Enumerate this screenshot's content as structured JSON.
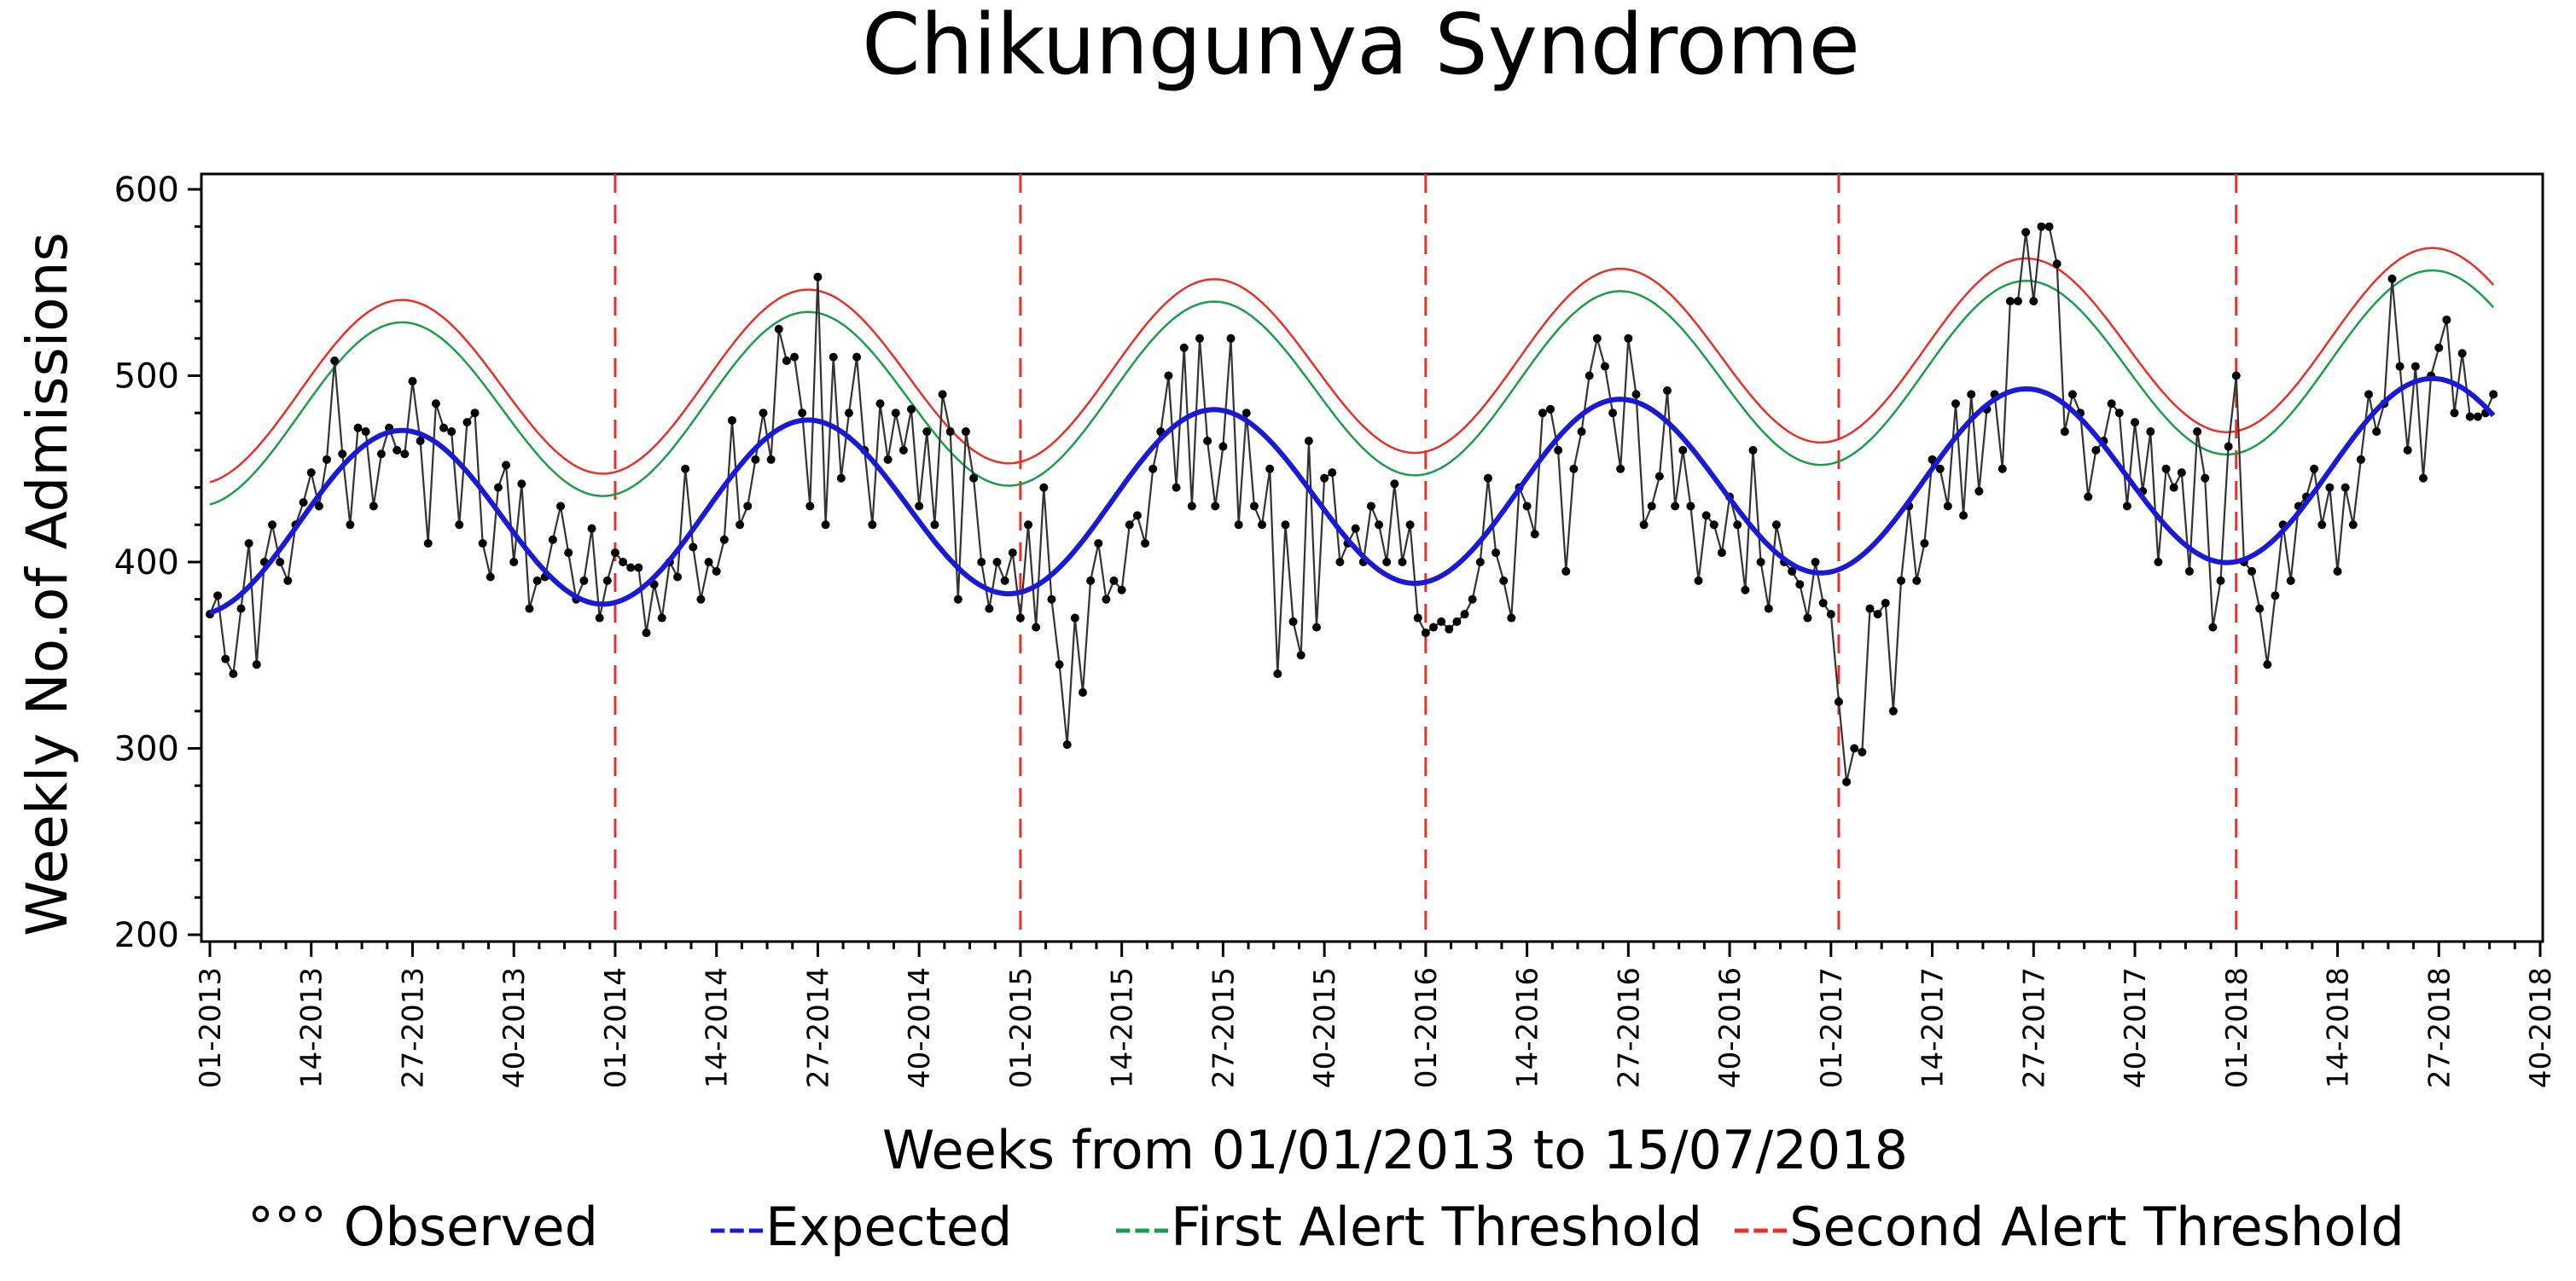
{
  "chart_data": {
    "type": "line",
    "title": "Chikungunya Syndrome",
    "xlabel": "Weeks from 01/01/2013 to 15/07/2018",
    "ylabel": "Weekly  No.of Admissions",
    "ylim": [
      200,
      600
    ],
    "yticks": [
      200,
      300,
      400,
      500,
      600
    ],
    "x_range_weeks": [
      0,
      299
    ],
    "x_tick_weeks": [
      0,
      13,
      26,
      39,
      52,
      65,
      78,
      91,
      104,
      117,
      130,
      143,
      156,
      169,
      182,
      195,
      208,
      221,
      234,
      247,
      260,
      273,
      286,
      299
    ],
    "xtick_labels": [
      "01-2013",
      "14-2013",
      "27-2013",
      "40-2013",
      "01-2014",
      "14-2014",
      "27-2014",
      "40-2014",
      "01-2015",
      "14-2015",
      "27-2015",
      "40-2015",
      "01-2016",
      "14-2016",
      "27-2016",
      "40-2016",
      "01-2017",
      "14-2017",
      "27-2017",
      "40-2017",
      "01-2018",
      "14-2018",
      "27-2018",
      "40-2018"
    ],
    "year_boundary_weeks": [
      52,
      104,
      156,
      209,
      260
    ],
    "legend": [
      {
        "marker": "°°°",
        "label": "Observed",
        "color": "#000000"
      },
      {
        "marker": "---",
        "label": "Expected",
        "color": "#1a1ad6"
      },
      {
        "marker": "---",
        "label": "First Alert Threshold",
        "color": "#1b9e4b"
      },
      {
        "marker": "---",
        "label": "Second Alert Threshold",
        "color": "#e8302a"
      }
    ],
    "legend_position": "bottom",
    "series": [
      {
        "name": "Expected",
        "color": "#1a1ad6",
        "model": {
          "base": 420,
          "trend_per_week": 0.107,
          "amplitude": 48,
          "period_weeks": 52.1,
          "peak_week": 24.5
        },
        "points": [
          [
            0,
            369
          ],
          [
            26,
            468
          ],
          [
            52,
            371
          ],
          [
            78,
            473
          ],
          [
            104,
            376
          ],
          [
            130,
            479
          ],
          [
            156,
            381
          ],
          [
            182,
            484
          ],
          [
            208,
            386
          ],
          [
            234,
            488
          ],
          [
            260,
            391
          ],
          [
            286,
            494
          ],
          [
            290,
            490
          ]
        ]
      },
      {
        "name": "First Alert Threshold",
        "color": "#1b9e4b",
        "offset_above_expected": 58
      },
      {
        "name": "Second Alert Threshold",
        "color": "#e8302a",
        "offset_above_expected": 70
      },
      {
        "name": "Observed",
        "color": "#000000",
        "x_start_week": 0,
        "values": [
          372,
          382,
          348,
          340,
          375,
          410,
          345,
          400,
          420,
          400,
          390,
          420,
          432,
          448,
          430,
          455,
          508,
          458,
          420,
          472,
          470,
          430,
          458,
          472,
          460,
          458,
          497,
          465,
          410,
          485,
          472,
          470,
          420,
          475,
          480,
          410,
          392,
          440,
          452,
          400,
          442,
          375,
          390,
          392,
          412,
          430,
          405,
          380,
          390,
          418,
          370,
          390,
          405,
          400,
          397,
          397,
          362,
          388,
          370,
          400,
          392,
          450,
          408,
          380,
          400,
          395,
          412,
          476,
          420,
          430,
          455,
          480,
          455,
          525,
          508,
          510,
          480,
          430,
          553,
          420,
          510,
          445,
          480,
          510,
          460,
          420,
          485,
          455,
          480,
          460,
          482,
          430,
          470,
          420,
          490,
          470,
          380,
          470,
          445,
          400,
          375,
          400,
          390,
          405,
          370,
          420,
          365,
          440,
          380,
          345,
          302,
          370,
          330,
          390,
          410,
          380,
          390,
          385,
          420,
          425,
          410,
          450,
          470,
          500,
          440,
          515,
          430,
          520,
          465,
          430,
          462,
          520,
          420,
          480,
          430,
          420,
          450,
          340,
          420,
          368,
          350,
          465,
          365,
          445,
          448,
          400,
          410,
          418,
          400,
          430,
          420,
          400,
          442,
          400,
          420,
          370,
          362,
          365,
          368,
          364,
          368,
          372,
          380,
          400,
          445,
          405,
          390,
          370,
          440,
          430,
          415,
          480,
          482,
          460,
          395,
          450,
          470,
          500,
          520,
          505,
          480,
          450,
          520,
          490,
          420,
          430,
          446,
          492,
          430,
          460,
          430,
          390,
          425,
          420,
          405,
          435,
          420,
          385,
          460,
          400,
          375,
          420,
          400,
          395,
          388,
          370,
          400,
          378,
          372,
          325,
          282,
          300,
          298,
          375,
          372,
          378,
          320,
          390,
          430,
          390,
          410,
          455,
          450,
          430,
          485,
          425,
          490,
          438,
          482,
          490,
          450,
          540,
          540,
          577,
          540,
          580,
          580,
          560,
          470,
          490,
          480,
          435,
          460,
          465,
          485,
          480,
          430,
          475,
          438,
          470,
          400,
          450,
          440,
          448,
          395,
          470,
          445,
          365,
          390,
          462,
          500,
          400,
          395,
          375,
          345,
          382,
          420,
          390,
          430,
          435,
          450,
          420,
          440,
          395,
          440,
          420,
          455,
          490,
          470,
          485,
          552,
          505,
          460,
          505,
          445,
          500,
          515,
          530,
          480,
          512,
          478,
          478,
          480,
          490
        ]
      }
    ]
  }
}
